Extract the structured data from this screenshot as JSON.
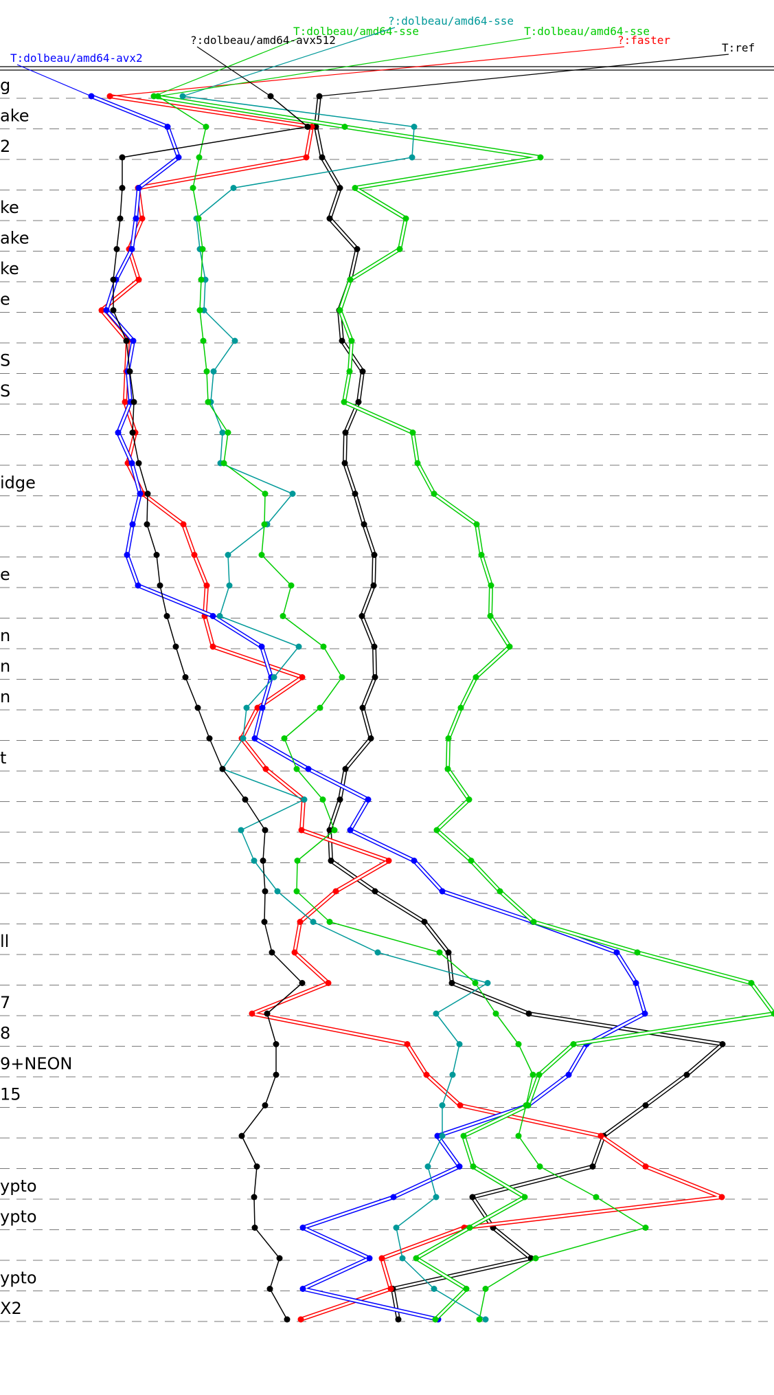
{
  "chart_data": {
    "type": "line",
    "title": "",
    "xlabel": "",
    "ylabel": "",
    "grid": "dashed-horizontal",
    "legend_placement": "top",
    "rows": [
      "g",
      "ake",
      "2",
      "",
      "ke",
      "ake",
      "ke",
      "e",
      "",
      "S",
      "S",
      "",
      "",
      "idge",
      "",
      "",
      "e",
      "",
      "n",
      "n",
      "n",
      "",
      "t",
      "",
      "",
      "",
      "",
      "",
      "ll",
      "",
      "7",
      "8",
      "9+NEON",
      "15",
      "",
      "",
      "ypto",
      "ypto",
      "",
      "ypto",
      "X2"
    ],
    "series": [
      {
        "name": "T:ref",
        "color": "#000000",
        "double": true,
        "values": [
          465,
          460,
          469,
          495,
          480,
          520,
          510,
          494,
          498,
          528,
          522,
          503,
          502,
          517,
          530,
          545,
          544,
          527,
          545,
          546,
          528,
          540,
          503,
          495,
          480,
          482,
          546,
          618,
          653,
          658,
          770,
          1052,
          1000,
          940,
          879,
          863,
          688,
          718,
          773,
          572,
          580
        ]
      },
      {
        "name": "?:faster",
        "color": "#ff0000",
        "double": true,
        "values": [
          160,
          454,
          446,
          201,
          207,
          188,
          202,
          148,
          186,
          184,
          182,
          197,
          186,
          208,
          267,
          283,
          301,
          298,
          310,
          440,
          375,
          352,
          387,
          442,
          439,
          566,
          489,
          437,
          429,
          478,
          367,
          593,
          621,
          670,
          875,
          940,
          1051,
          676,
          556,
          569,
          438
        ]
      },
      {
        "name": "T:dolbeau/amd64-avx2",
        "color": "#0000ff",
        "double": true,
        "values": [
          133,
          244,
          260,
          202,
          198,
          192,
          169,
          155,
          194,
          186,
          190,
          172,
          192,
          204,
          193,
          185,
          201,
          310,
          381,
          395,
          382,
          371,
          449,
          536,
          510,
          603,
          644,
          776,
          898,
          926,
          939,
          854,
          828,
          769,
          637,
          669,
          573,
          441,
          538,
          441,
          638
        ]
      },
      {
        "name": "T:dolbeau/amd64-sse",
        "color": "#00cc00",
        "double": true,
        "values": [
          224,
          502,
          787,
          517,
          591,
          582,
          510,
          495,
          512,
          509,
          501,
          601,
          608,
          632,
          694,
          701,
          715,
          714,
          742,
          693,
          671,
          653,
          652,
          683,
          636,
          686,
          728,
          777,
          928,
          1094,
          1127,
          835,
          785,
          769,
          675,
          689,
          764,
          684,
          606,
          679,
          634
        ]
      },
      {
        "name": "?:dolbeau/amd64-sse",
        "color": "#009999",
        "double": false,
        "values": [
          266,
          603,
          600,
          340,
          286,
          291,
          299,
          297,
          342,
          311,
          307,
          324,
          321,
          426,
          389,
          332,
          334,
          320,
          435,
          399,
          359,
          354,
          324,
          443,
          351,
          370,
          404,
          456,
          550,
          710,
          635,
          669,
          659,
          644,
          644,
          623,
          635,
          577,
          586,
          632,
          707
        ]
      },
      {
        "name": "T:dolbeau/amd64-sse",
        "color": "#00cc00",
        "double": false,
        "values": [
          230,
          300,
          290,
          281,
          289,
          295,
          293,
          291,
          296,
          301,
          303,
          332,
          326,
          386,
          385,
          381,
          424,
          412,
          471,
          498,
          466,
          414,
          432,
          470,
          487,
          433,
          432,
          480,
          640,
          692,
          722,
          755,
          776,
          766,
          755,
          786,
          868,
          940,
          780,
          707,
          698
        ]
      },
      {
        "name": "?:dolbeau/amd64-avx512",
        "color": "#000000",
        "double": false,
        "values": [
          394,
          448,
          178,
          178,
          175,
          170,
          165,
          165,
          184,
          189,
          195,
          193,
          202,
          215,
          214,
          228,
          233,
          243,
          256,
          270,
          288,
          305,
          324,
          357,
          386,
          383,
          386,
          385,
          396,
          440,
          389,
          402,
          402,
          386,
          352,
          374,
          370,
          371,
          407,
          393,
          418
        ]
      }
    ]
  }
}
